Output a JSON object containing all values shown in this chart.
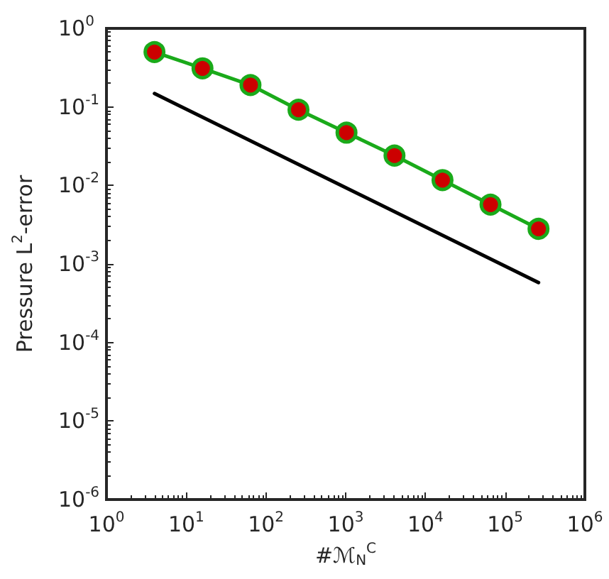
{
  "chart_data": {
    "type": "line",
    "xlabel": "#ℳ$_{N}$$^{C}$",
    "ylabel": "Pressure L$^{2}$-error",
    "log": "xy",
    "grid": false,
    "xlim": [
      1,
      1000000
    ],
    "ylim": [
      1e-06,
      1
    ],
    "xticks": [
      {
        "value": 1,
        "label": "10$^{0}$"
      },
      {
        "value": 10,
        "label": "10$^{1}$"
      },
      {
        "value": 100,
        "label": "10$^{2}$"
      },
      {
        "value": 1000,
        "label": "10$^{3}$"
      },
      {
        "value": 10000,
        "label": "10$^{4}$"
      },
      {
        "value": 100000,
        "label": "10$^{5}$"
      },
      {
        "value": 1000000,
        "label": "10$^{6}$"
      }
    ],
    "yticks": [
      {
        "value": 1e-06,
        "label": "10$^{-6}$"
      },
      {
        "value": 1e-05,
        "label": "10$^{-5}$"
      },
      {
        "value": 0.0001,
        "label": "10$^{-4}$"
      },
      {
        "value": 0.001,
        "label": "10$^{-3}$"
      },
      {
        "value": 0.01,
        "label": "10$^{-2}$"
      },
      {
        "value": 0.1,
        "label": "10$^{-1}$"
      },
      {
        "value": 1,
        "label": "10$^{0}$"
      }
    ],
    "series": [
      {
        "color": "#1aaa1a",
        "marker": "circle",
        "line_style": "solid",
        "x": [
          4,
          16,
          64,
          256,
          1024,
          4096,
          16384,
          65536,
          262144
        ],
        "values": [
          0.5,
          0.31,
          0.19,
          0.092,
          0.047,
          0.024,
          0.0117,
          0.0057,
          0.0028
        ]
      },
      {
        "color": "#000000",
        "marker": "none",
        "line_style": "solid",
        "x": [
          4,
          262144
        ],
        "values": [
          0.148,
          0.00058
        ]
      }
    ]
  }
}
